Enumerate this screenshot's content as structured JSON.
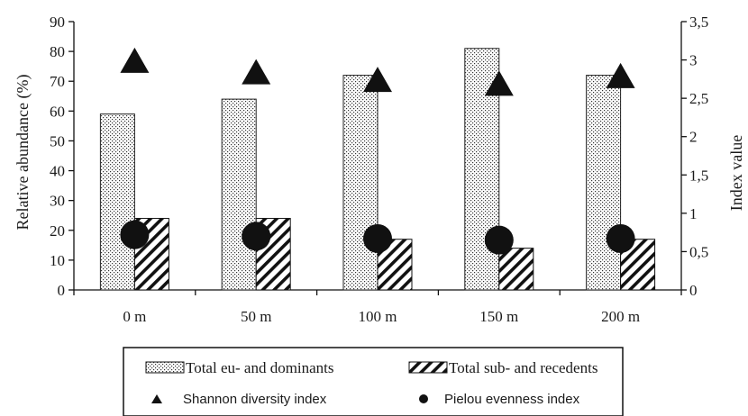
{
  "chart_data": {
    "type": "bar",
    "categories": [
      "0 m",
      "50 m",
      "100 m",
      "150 m",
      "200 m"
    ],
    "ylabel": "Relative abundance (%)",
    "y2label": "Index value",
    "ylim": [
      0,
      90
    ],
    "yticks": [
      "0",
      "10",
      "20",
      "30",
      "40",
      "50",
      "60",
      "70",
      "80",
      "90"
    ],
    "y2lim": [
      0,
      3.5
    ],
    "y2ticks": [
      "0",
      "0,5",
      "1",
      "1,5",
      "2",
      "2,5",
      "3",
      "3,5"
    ],
    "grid": false,
    "legend_position": "bottom",
    "series": [
      {
        "name": "Total eu- and dominants",
        "kind": "bar",
        "axis": "left",
        "pattern": "dotted",
        "values": [
          59,
          64,
          72,
          81,
          72
        ]
      },
      {
        "name": "Total sub- and recedents",
        "kind": "bar",
        "axis": "left",
        "pattern": "hatched",
        "values": [
          24,
          24,
          17,
          14,
          17
        ]
      },
      {
        "name": "Shannon diversity index",
        "kind": "marker",
        "marker": "triangle",
        "axis": "right",
        "values": [
          2.95,
          2.8,
          2.7,
          2.65,
          2.75
        ]
      },
      {
        "name": "Pielou evenness index",
        "kind": "marker",
        "marker": "circle",
        "axis": "right",
        "values": [
          0.72,
          0.7,
          0.67,
          0.65,
          0.67
        ]
      }
    ]
  }
}
